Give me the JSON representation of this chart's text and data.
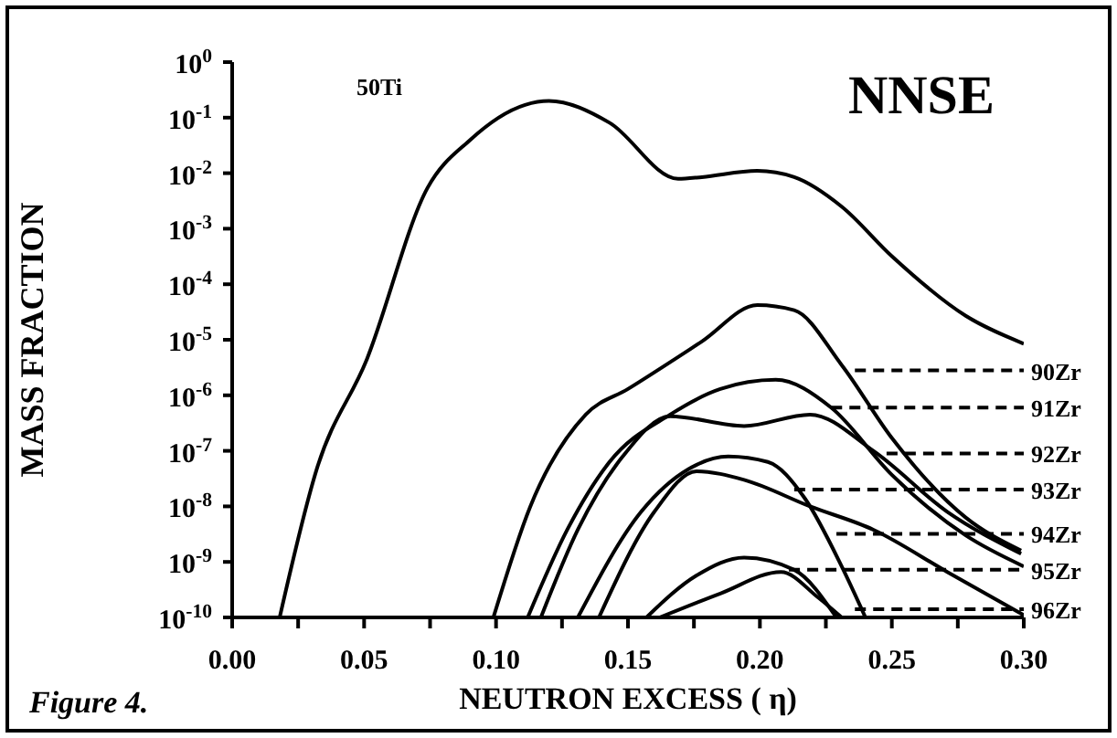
{
  "chart_data": {
    "type": "line",
    "xlabel": "NEUTRON EXCESS ( η)",
    "ylabel": "MASS FRACTION",
    "log": "y",
    "xlim": [
      0,
      0.3
    ],
    "ylim": [
      1e-10,
      1
    ],
    "xticks": [
      {
        "value": 0,
        "label": "0.00"
      },
      {
        "value": 0.025,
        "label": null
      },
      {
        "value": 0.05,
        "label": "0.05"
      },
      {
        "value": 0.075,
        "label": null
      },
      {
        "value": 0.1,
        "label": "0.10"
      },
      {
        "value": 0.125,
        "label": null
      },
      {
        "value": 0.15,
        "label": "0.15"
      },
      {
        "value": 0.175,
        "label": null
      },
      {
        "value": 0.2,
        "label": "0.20"
      },
      {
        "value": 0.225,
        "label": null
      },
      {
        "value": 0.25,
        "label": "0.25"
      },
      {
        "value": 0.275,
        "label": null
      },
      {
        "value": 0.3,
        "label": "0.30"
      }
    ],
    "yticks": [
      {
        "value": 1,
        "label": "10$^{0}$"
      },
      {
        "value": 0.1,
        "label": "10$^{-1}$"
      },
      {
        "value": 0.01,
        "label": "10$^{-2}$"
      },
      {
        "value": 0.001,
        "label": "10$^{-3}$"
      },
      {
        "value": 0.0001,
        "label": "10$^{-4}$"
      },
      {
        "value": 1e-05,
        "label": "10$^{-5}$"
      },
      {
        "value": 1e-06,
        "label": "10$^{-6}$"
      },
      {
        "value": 1e-07,
        "label": "10$^{-7}$"
      },
      {
        "value": 1e-08,
        "label": "10$^{-8}$"
      },
      {
        "value": 1e-09,
        "label": "10$^{-9}$"
      },
      {
        "value": 1e-10,
        "label": "10$^{-10}$"
      }
    ],
    "series": [
      {
        "name": "50Ti",
        "color": "#000000",
        "x": [
          0.018,
          0.032,
          0.051,
          0.074,
          0.09,
          0.111,
          0.12,
          0.143,
          0.169,
          0.178,
          0.199,
          0.213,
          0.231,
          0.25,
          0.278,
          0.3
        ],
        "values": [
          1e-10,
          4.6e-08,
          4.4e-06,
          0.0054,
          0.039,
          0.17,
          0.2,
          0.081,
          0.0079,
          0.0085,
          0.011,
          0.0085,
          0.0025,
          0.00032,
          2.7e-05,
          8.5e-06
        ]
      },
      {
        "color": "#000000",
        "x": [
          0.099,
          0.113,
          0.134,
          0.15,
          0.178,
          0.199,
          0.213,
          0.231,
          0.25,
          0.278,
          0.299
        ],
        "values": [
          1e-10,
          1e-08,
          4.5e-07,
          1.3e-06,
          9.3e-06,
          4.2e-05,
          3.4e-05,
          3.5e-06,
          1.7e-07,
          6.3e-09,
          1.6e-09
        ]
      },
      {
        "color": "#000000",
        "x": [
          0.112,
          0.127,
          0.143,
          0.166,
          0.185,
          0.206,
          0.227,
          0.25,
          0.278,
          0.3
        ],
        "values": [
          1e-10,
          3.8e-09,
          6.3e-08,
          4.5e-07,
          1.3e-06,
          1.9e-06,
          6e-07,
          3.7e-08,
          3e-09,
          8.3e-10
        ]
      },
      {
        "color": "#000000",
        "x": [
          0.117,
          0.131,
          0.148,
          0.166,
          0.194,
          0.219,
          0.243,
          0.271,
          0.299
        ],
        "values": [
          1e-10,
          3.8e-09,
          7.9e-08,
          4.2e-07,
          2.8e-07,
          4.5e-07,
          1e-07,
          8e-09,
          1.4e-09
        ]
      },
      {
        "color": "#000000",
        "x": [
          0.131,
          0.155,
          0.173,
          0.188,
          0.203,
          0.217,
          0.231,
          0.24
        ],
        "values": [
          1e-10,
          8e-09,
          4.7e-08,
          7.9e-08,
          6.3e-08,
          1.4e-08,
          8.3e-10,
          1e-10
        ]
      },
      {
        "color": "#000000",
        "x": [
          0.139,
          0.16,
          0.176,
          0.194,
          0.219,
          0.243,
          0.271,
          0.3
        ],
        "values": [
          1e-10,
          8e-09,
          4.3e-08,
          3e-08,
          1e-08,
          3.8e-09,
          6.6e-10,
          1.1e-10
        ]
      },
      {
        "color": "#000000",
        "x": [
          0.157,
          0.176,
          0.194,
          0.213,
          0.229
        ],
        "values": [
          1e-10,
          5.7e-10,
          1.2e-09,
          7.2e-10,
          1e-10
        ]
      },
      {
        "color": "#000000",
        "x": [
          0.162,
          0.185,
          0.208,
          0.222,
          0.231
        ],
        "values": [
          1e-10,
          2.7e-10,
          6.6e-10,
          2.3e-10,
          1e-10
        ]
      }
    ],
    "annotations": [
      "NNSE",
      "Figure 4.",
      {
        "text": "90Zr",
        "x": 0.236,
        "y": 2.8e-06
      },
      {
        "text": "91Zr",
        "x": 0.227,
        "y": 6e-07
      },
      {
        "text": "92Zr",
        "x": 0.248,
        "y": 9e-08
      },
      {
        "text": "93Zr",
        "x": 0.213,
        "y": 2e-08
      },
      {
        "text": "94Zr",
        "x": 0.229,
        "y": 3.2e-09
      },
      {
        "text": "95Zr",
        "x": 0.211,
        "y": 7.2e-10
      },
      {
        "text": "96Zr",
        "x": 0.236,
        "y": 1.4e-10
      }
    ]
  }
}
